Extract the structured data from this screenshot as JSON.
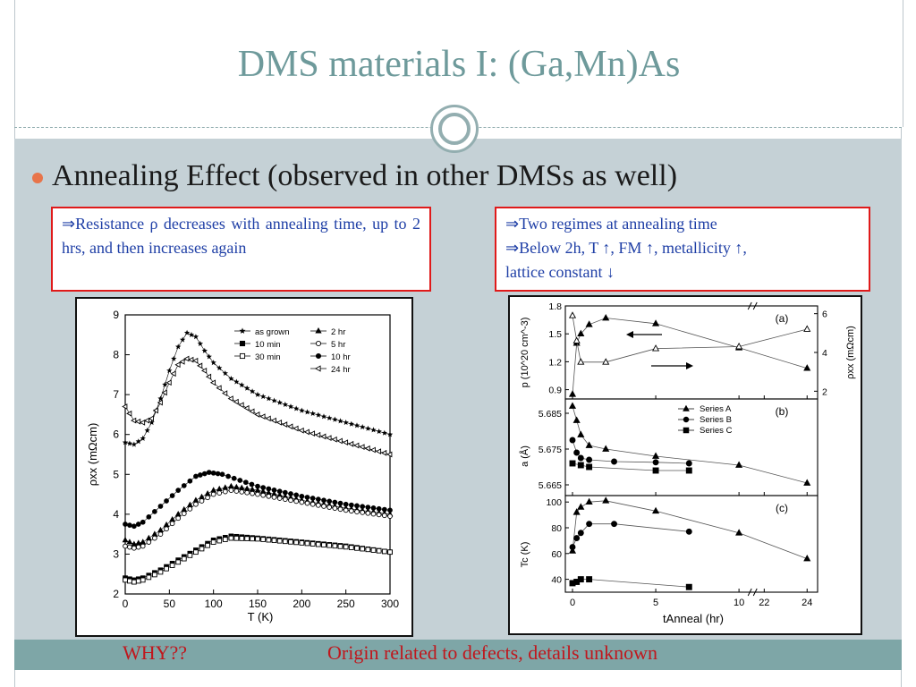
{
  "slide": {
    "title": "DMS materials I: (Ga,Mn)As",
    "bullet": "Annealing Effect (observed in other DMSs as well)",
    "box_left": "⇒Resistance ρ decreases with annealing time, up to 2 hrs, and then increases again",
    "box_right_lines": [
      "⇒Two regimes at annealing time",
      "⇒Below 2h, T ↑, FM ↑, metallicity ↑,",
      "lattice constant ↓"
    ],
    "footer_why": "WHY??",
    "footer_origin": "Origin related to defects, details unknown"
  },
  "colors": {
    "title": "#6e9a9b",
    "content_bg": "#c5d1d6",
    "footer_bg": "#7ea6a7",
    "bullet": "#e8744a",
    "box_border": "#e01a1a",
    "box_text": "#1f3fa6",
    "footer_text": "#c0171d"
  },
  "chart_data": [
    {
      "type": "scatter",
      "xlabel": "T (K)",
      "ylabel": "ρxx (mΩcm)",
      "xlim": [
        0,
        300
      ],
      "ylim": [
        2,
        9
      ],
      "xticks": [
        0,
        50,
        100,
        150,
        200,
        250,
        300
      ],
      "yticks": [
        2,
        3,
        4,
        5,
        6,
        7,
        8,
        9
      ],
      "legend": [
        "as grown",
        "10 min",
        "30 min",
        "2 hr",
        "5 hr",
        "10 hr",
        "24 hr"
      ],
      "legend_position": "top-right",
      "series": [
        {
          "name": "as grown",
          "marker": "star",
          "x": [
            0,
            10,
            20,
            30,
            40,
            50,
            60,
            70,
            80,
            90,
            100,
            120,
            150,
            200,
            250,
            300
          ],
          "y": [
            5.8,
            5.75,
            5.9,
            6.3,
            6.9,
            7.6,
            8.2,
            8.55,
            8.45,
            8.1,
            7.8,
            7.4,
            7.0,
            6.6,
            6.3,
            6.0
          ]
        },
        {
          "name": "24 hr",
          "marker": "tri-left-open",
          "x": [
            0,
            10,
            20,
            30,
            40,
            50,
            60,
            70,
            80,
            90,
            100,
            120,
            150,
            200,
            250,
            300
          ],
          "y": [
            6.7,
            6.35,
            6.3,
            6.4,
            6.8,
            7.3,
            7.75,
            7.9,
            7.85,
            7.6,
            7.3,
            6.9,
            6.5,
            6.1,
            5.8,
            5.5
          ]
        },
        {
          "name": "10 hr",
          "marker": "circle-filled",
          "x": [
            0,
            10,
            20,
            40,
            60,
            80,
            95,
            110,
            130,
            150,
            200,
            250,
            300
          ],
          "y": [
            3.75,
            3.7,
            3.8,
            4.2,
            4.6,
            4.95,
            5.05,
            5.0,
            4.85,
            4.7,
            4.45,
            4.25,
            4.1
          ]
        },
        {
          "name": "2 hr",
          "marker": "tri-up-filled",
          "x": [
            0,
            10,
            20,
            40,
            60,
            80,
            100,
            120,
            150,
            200,
            250,
            300
          ],
          "y": [
            3.35,
            3.25,
            3.3,
            3.6,
            4.0,
            4.35,
            4.6,
            4.7,
            4.6,
            4.35,
            4.15,
            4.0
          ]
        },
        {
          "name": "5 hr",
          "marker": "circle-open",
          "x": [
            0,
            10,
            20,
            40,
            60,
            80,
            100,
            120,
            150,
            200,
            250,
            300
          ],
          "y": [
            3.2,
            3.15,
            3.2,
            3.5,
            3.9,
            4.25,
            4.5,
            4.6,
            4.5,
            4.3,
            4.1,
            3.95
          ]
        },
        {
          "name": "10 min",
          "marker": "square-filled",
          "x": [
            0,
            10,
            20,
            40,
            60,
            80,
            100,
            120,
            150,
            200,
            250,
            300
          ],
          "y": [
            2.4,
            2.35,
            2.4,
            2.6,
            2.85,
            3.1,
            3.35,
            3.45,
            3.4,
            3.3,
            3.2,
            3.05
          ]
        },
        {
          "name": "30 min",
          "marker": "square-open",
          "x": [
            0,
            10,
            20,
            40,
            60,
            80,
            100,
            120,
            150,
            200,
            250,
            300
          ],
          "y": [
            2.35,
            2.3,
            2.35,
            2.55,
            2.8,
            3.05,
            3.3,
            3.4,
            3.38,
            3.28,
            3.18,
            3.05
          ]
        }
      ]
    },
    {
      "type": "line",
      "panels": [
        {
          "label": "(a)",
          "ylabel_left": "p (10^20 cm^-3)",
          "ylabel_right": "ρxx (mΩcm)",
          "ylim_left": [
            0.8,
            1.8
          ],
          "yticks_left": [
            0.9,
            1.2,
            1.5,
            1.8
          ],
          "ylim_right": [
            2,
            6
          ],
          "yticks_right": [
            2,
            4,
            6
          ],
          "series": [
            {
              "marker": "tri-up-filled",
              "axis": "left",
              "x": [
                0,
                0.25,
                0.5,
                1,
                2,
                5,
                10,
                24
              ],
              "y": [
                0.85,
                1.4,
                1.5,
                1.6,
                1.67,
                1.61,
                1.35,
                1.13
              ]
            },
            {
              "marker": "tri-up-open",
              "axis": "right",
              "x": [
                0,
                0.25,
                0.5,
                2,
                5,
                10,
                24
              ],
              "y": [
                5.9,
                4.6,
                3.5,
                3.5,
                4.2,
                4.3,
                5.2
              ]
            }
          ]
        },
        {
          "label": "(b)",
          "ylabel_left": "a (Å)",
          "yticks_left": [
            5.665,
            5.675,
            5.685
          ],
          "legend": [
            "Series A",
            "Series B",
            "Series C"
          ],
          "series": [
            {
              "name": "Series A",
              "marker": "tri-up-filled",
              "x": [
                0,
                0.25,
                0.5,
                1,
                2,
                5,
                10,
                24
              ],
              "y": [
                5.687,
                5.683,
                5.679,
                5.676,
                5.675,
                5.673,
                5.6705,
                5.6655
              ]
            },
            {
              "name": "Series B",
              "marker": "circle-filled",
              "x": [
                0,
                0.25,
                0.5,
                1,
                2.5,
                5,
                7
              ],
              "y": [
                5.6775,
                5.674,
                5.6725,
                5.672,
                5.6715,
                5.6713,
                5.671
              ]
            },
            {
              "name": "Series C",
              "marker": "square-filled",
              "x": [
                0,
                0.5,
                1,
                5,
                7
              ],
              "y": [
                5.671,
                5.6705,
                5.67,
                5.669,
                5.669
              ]
            }
          ]
        },
        {
          "label": "(c)",
          "ylabel_left": "Tc (K)",
          "yticks_left": [
            40,
            60,
            80,
            100
          ],
          "xlabel": "tAnneal (hr)",
          "xticks": [
            "0",
            "5",
            "10",
            "22",
            "24"
          ],
          "series": [
            {
              "marker": "tri-up-filled",
              "x": [
                0,
                0.25,
                0.5,
                1,
                2,
                5,
                10,
                24
              ],
              "y": [
                62,
                92,
                96,
                100,
                101,
                93,
                76,
                56
              ]
            },
            {
              "marker": "circle-filled",
              "x": [
                0,
                0.25,
                0.5,
                1,
                2.5,
                7
              ],
              "y": [
                65,
                72,
                76,
                83,
                83,
                77
              ]
            },
            {
              "marker": "square-filled",
              "x": [
                0,
                0.25,
                0.5,
                1,
                7
              ],
              "y": [
                37,
                38,
                40,
                40,
                34
              ]
            }
          ]
        }
      ]
    }
  ]
}
